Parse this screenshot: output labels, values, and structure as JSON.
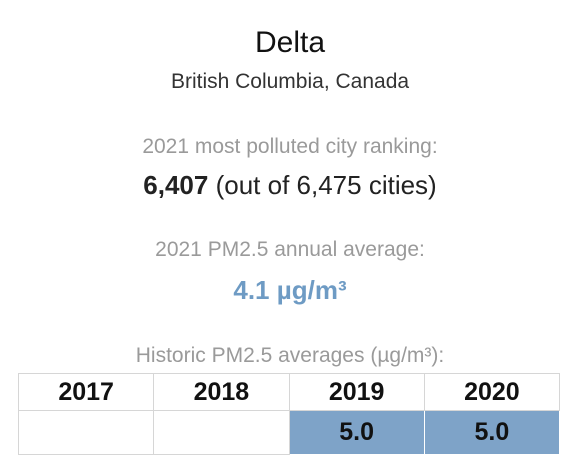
{
  "city": "Delta",
  "region": "British Columbia, Canada",
  "ranking": {
    "label": "2021 most polluted city ranking:",
    "rank": "6,407",
    "out_of": "(out of 6,475 cities)"
  },
  "annual_average": {
    "label": "2021 PM2.5 annual average:",
    "value": "4.1 µg/m³",
    "accent_color": "#6e9bc4"
  },
  "historic": {
    "label": "Historic PM2.5 averages (µg/m³):",
    "fill_color": "#7ea3c8",
    "years": [
      "2017",
      "2018",
      "2019",
      "2020"
    ],
    "values": [
      "",
      "",
      "5.0",
      "5.0"
    ]
  }
}
